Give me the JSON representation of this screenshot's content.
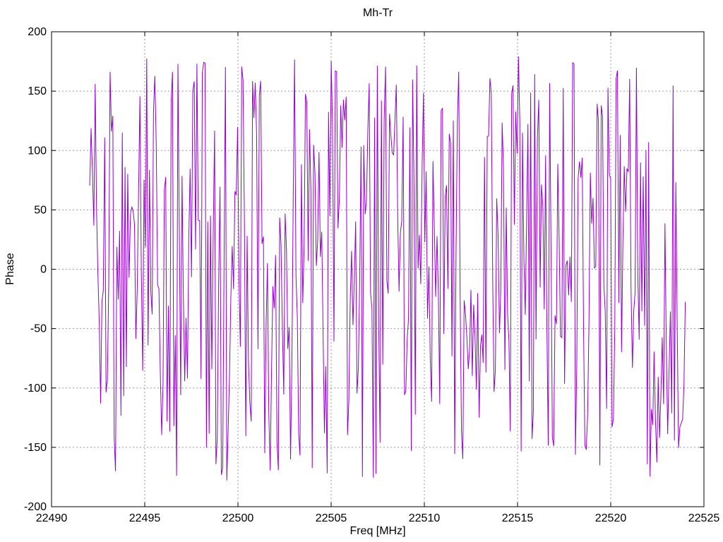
{
  "page": {
    "background_color": "#ffffff",
    "text_color": "#000000",
    "grid_color": "#9a9a9a"
  },
  "chart_data": {
    "type": "line",
    "title": "Mh-Tr",
    "xlabel": "Freq [MHz]",
    "ylabel": "Phase",
    "xlim": [
      22490,
      22525
    ],
    "ylim": [
      -200,
      200
    ],
    "x_ticks": [
      22490,
      22495,
      22500,
      22505,
      22510,
      22515,
      22520,
      22525
    ],
    "y_ticks": [
      -200,
      -150,
      -100,
      -50,
      0,
      50,
      100,
      150,
      200
    ],
    "grid": true,
    "grid_style": "dashed-gray-at-major-ticks",
    "tick_style": "inward-mirrored-on-all-borders",
    "legend_position": "none",
    "series": [
      {
        "name": "Mh-Tr phase",
        "color": "#9400d3",
        "x_start": 22492.05,
        "x_end": 22524.0,
        "n_points": 440,
        "y_wrap_range": [
          -180,
          180
        ],
        "generator": {
          "model": "wrapped-random-walk",
          "seed": 1234567,
          "max_step_deg": 450
        },
        "description": "Densely wrapped phase noise oscillating across the full ±180° range over 22492–22524 MHz, rendered as near-vertical connected line segments"
      }
    ]
  }
}
